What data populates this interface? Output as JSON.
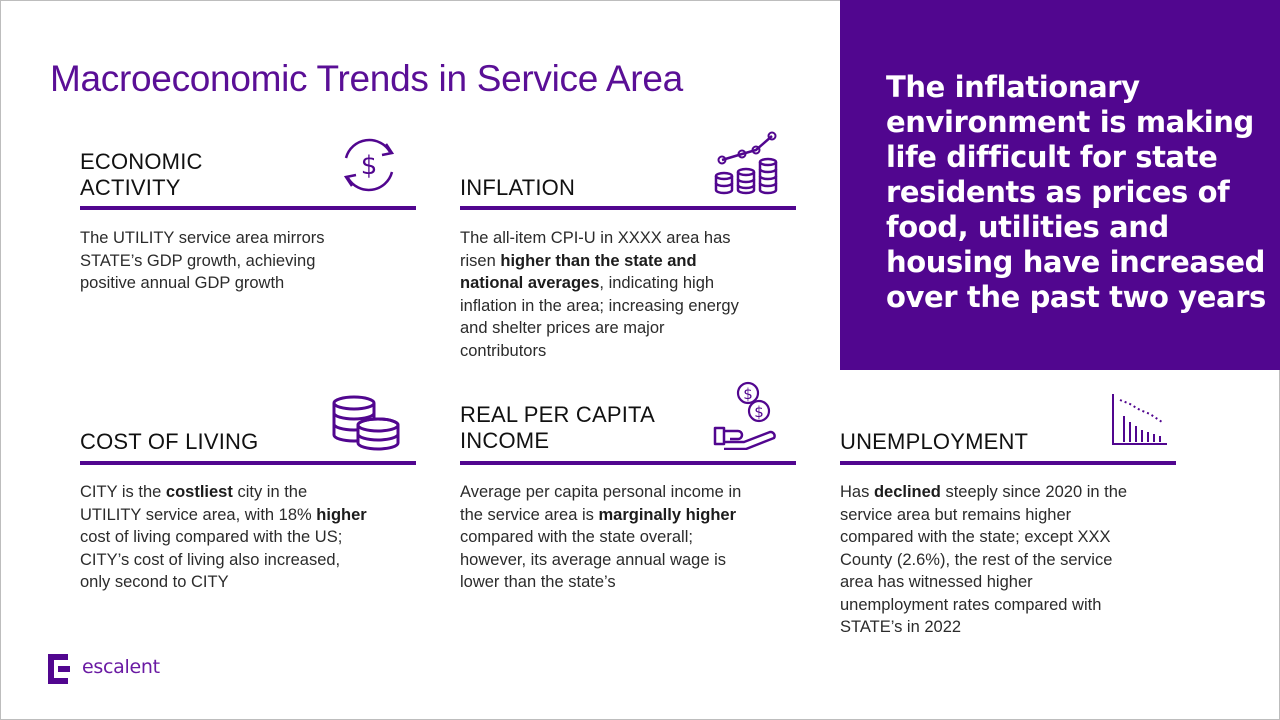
{
  "title": "Macroeconomic Trends in Service Area",
  "callout": "The inflationary environment is making life difficult for state residents as prices of food, utilities and housing have increased over the past two years",
  "sections": {
    "economic": {
      "heading_line1": "ECONOMIC",
      "heading_line2": "ACTIVITY",
      "t1": "The UTILITY service area mirrors",
      "t2": "STATE’s GDP growth, achieving",
      "t3": "positive annual  GDP growth",
      "icon": "dollar-cycle-icon"
    },
    "inflation": {
      "heading": "INFLATION",
      "t1": "The all-item CPI-U in XXXX area has",
      "t2a": "risen ",
      "t2b": "higher than the state and",
      "t3a": "national averages",
      "t3b": ", indicating high",
      "t4": "inflation in the area; increasing energy",
      "t5": "and shelter prices are major",
      "t6": "contributors",
      "icon": "coins-trend-icon"
    },
    "cost": {
      "heading": "COST OF LIVING",
      "t1a": "CITY is the ",
      "t1b": "costliest",
      "t1c": " city in the",
      "t2a": "UTILITY service area, with 18% ",
      "t2b": "higher",
      "t3": "cost of living compared with the US;",
      "t4": "CITY’s cost of living also increased,",
      "t5": "only second to CITY",
      "icon": "coin-stack-icon"
    },
    "income": {
      "heading_line1": "REAL PER CAPITA",
      "heading_line2": "INCOME",
      "t1": "Average per capita personal income in",
      "t2a": "the service area is ",
      "t2b": "marginally higher",
      "t3": "compared with the state overall;",
      "t4": "however, its average annual  wage is",
      "t5": "lower than the state’s",
      "icon": "hand-coins-icon"
    },
    "unemployment": {
      "heading": "UNEMPLOYMENT",
      "t1a": "Has ",
      "t1b": "declined",
      "t1c": " steeply since 2020 in the",
      "t2": "service area but remains higher",
      "t3": "compared with the state; except XXX",
      "t4": "County (2.6%), the rest of the service",
      "t5": "area has witnessed higher",
      "t6": "unemployment rates compared with",
      "t7": "STATE’s in 2022",
      "icon": "declining-chart-icon"
    }
  },
  "logo": {
    "text": "escalent",
    "icon": "escalent-logo-icon"
  },
  "colors": {
    "accent": "#51068f",
    "title": "#5a0f96",
    "text": "#2b2b2b"
  }
}
